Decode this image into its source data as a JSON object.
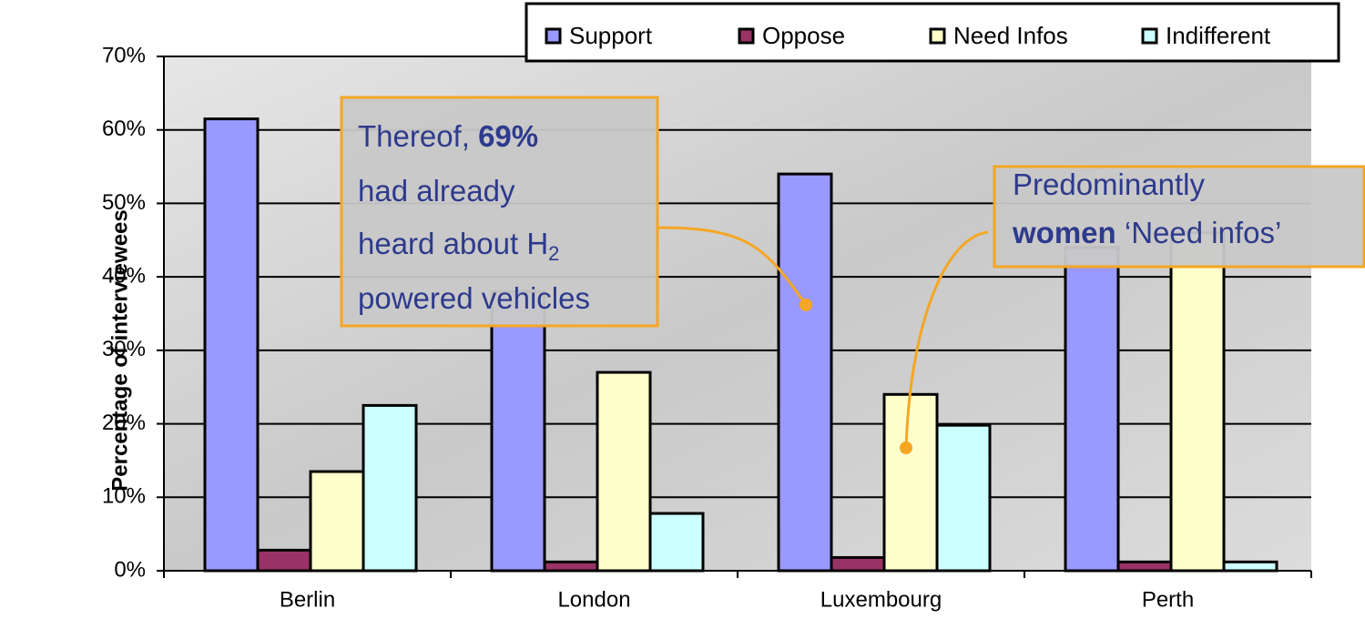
{
  "chart_data": {
    "type": "bar",
    "y_label": "Percentage of interviewees",
    "categories": [
      "Berlin",
      "London",
      "Luxembourg",
      "Perth"
    ],
    "series": [
      {
        "name": "Support",
        "color": "#9999ff",
        "values": [
          61.5,
          38,
          54,
          44
        ]
      },
      {
        "name": "Oppose",
        "color": "#993366",
        "values": [
          2.8,
          1.2,
          1.8,
          1.2
        ]
      },
      {
        "name": "Need Infos",
        "color": "#ffffcc",
        "values": [
          13.5,
          27,
          24,
          46
        ]
      },
      {
        "name": "Indifferent",
        "color": "#ccffff",
        "values": [
          22.5,
          7.8,
          19.8,
          1.2
        ]
      }
    ],
    "ylim": [
      0,
      70
    ],
    "yticks": [
      {
        "value": 0,
        "label": "0%"
      },
      {
        "value": 10,
        "label": "10%"
      },
      {
        "value": 20,
        "label": "20%"
      },
      {
        "value": 30,
        "label": "30%"
      },
      {
        "value": 40,
        "label": "40%"
      },
      {
        "value": 50,
        "label": "50%"
      },
      {
        "value": 60,
        "label": "60%"
      },
      {
        "value": 70,
        "label": "70%"
      }
    ],
    "grid": true,
    "legend": "top-right",
    "annotations": [
      {
        "lines": [
          [
            {
              "text": "Thereof, "
            },
            {
              "text": "69%",
              "bold": true
            }
          ],
          [
            {
              "text": "had already"
            }
          ],
          [
            {
              "text": "heard about H"
            },
            {
              "text": "2",
              "sub": true
            }
          ],
          [
            {
              "text": "powered vehicles"
            }
          ]
        ]
      },
      {
        "lines": [
          [
            {
              "text": "Predominantly"
            }
          ],
          [
            {
              "text": "women",
              "bold": true
            },
            {
              "text": " ‘Need infos’"
            }
          ]
        ]
      }
    ]
  }
}
